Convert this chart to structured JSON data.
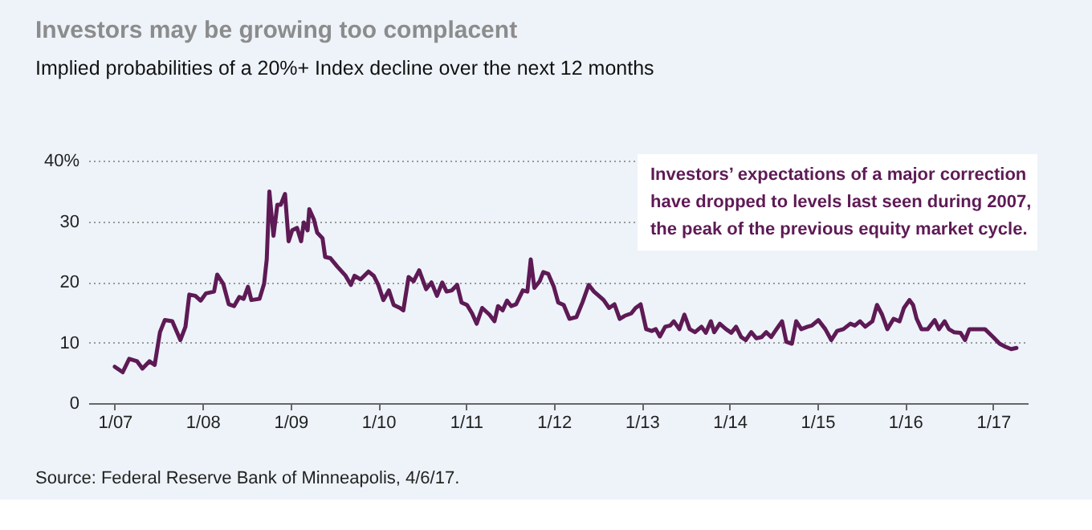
{
  "chart_data": {
    "type": "line",
    "title": "Investors may be growing too complacent",
    "subtitle": "Implied probabilities of a 20%+ Index decline over the next 12 months",
    "annotations": [
      "Investors’ expectations of a major correction have dropped to levels last seen during 2007, the peak of the previous equity market cycle.",
      "Source: Federal Reserve Bank of Minneapolis, 4/6/17."
    ],
    "xlim": [
      "2006-09-13",
      "2017-05-25"
    ],
    "xticks": [
      {
        "value": "2007-01-01",
        "label": "1/07"
      },
      {
        "value": "2008-01-01",
        "label": "1/08"
      },
      {
        "value": "2009-01-01",
        "label": "1/09"
      },
      {
        "value": "2010-01-01",
        "label": "1/10"
      },
      {
        "value": "2011-01-01",
        "label": "1/11"
      },
      {
        "value": "2012-01-01",
        "label": "1/12"
      },
      {
        "value": "2013-01-01",
        "label": "1/13"
      },
      {
        "value": "2014-01-01",
        "label": "1/14"
      },
      {
        "value": "2015-01-01",
        "label": "1/15"
      },
      {
        "value": "2016-01-01",
        "label": "1/16"
      },
      {
        "value": "2017-01-01",
        "label": "1/17"
      }
    ],
    "ylim": [
      0,
      40
    ],
    "yticks": [
      0,
      10,
      20,
      30,
      {
        "value": 40,
        "label": "40%"
      }
    ],
    "grid": "y",
    "legend": false,
    "line_style": "solid",
    "series": [
      {
        "color": "#5e1a55",
        "x": [
          "2007-01-01",
          "2007-02-03",
          "2007-03-02",
          "2007-04-04",
          "2007-04-26",
          "2007-05-25",
          "2007-06-16",
          "2007-07-08",
          "2007-07-28",
          "2007-08-28",
          "2007-10-01",
          "2007-10-22",
          "2007-11-07",
          "2007-12-02",
          "2007-12-24",
          "2008-01-15",
          "2008-02-18",
          "2008-03-02",
          "2008-03-27",
          "2008-04-19",
          "2008-05-11",
          "2008-06-02",
          "2008-06-20",
          "2008-07-08",
          "2008-07-22",
          "2008-08-25",
          "2008-09-13",
          "2008-09-24",
          "2008-10-05",
          "2008-10-22",
          "2008-11-07",
          "2008-11-21",
          "2008-12-09",
          "2008-12-24",
          "2009-01-08",
          "2009-01-28",
          "2009-02-14",
          "2009-02-25",
          "2009-03-13",
          "2009-03-20",
          "2009-04-08",
          "2009-04-22",
          "2009-05-14",
          "2009-05-25",
          "2009-06-16",
          "2009-07-15",
          "2009-08-18",
          "2009-09-09",
          "2009-09-24",
          "2009-10-19",
          "2009-11-21",
          "2009-12-13",
          "2010-01-01",
          "2010-01-22",
          "2010-02-14",
          "2010-03-06",
          "2010-04-01",
          "2010-04-15",
          "2010-05-07",
          "2010-05-28",
          "2010-06-20",
          "2010-07-19",
          "2010-08-10",
          "2010-09-02",
          "2010-09-24",
          "2010-10-12",
          "2010-11-03",
          "2010-11-25",
          "2010-12-13",
          "2011-01-05",
          "2011-01-26",
          "2011-02-14",
          "2011-03-09",
          "2011-04-08",
          "2011-04-29",
          "2011-05-14",
          "2011-06-02",
          "2011-06-20",
          "2011-07-08",
          "2011-07-28",
          "2011-08-25",
          "2011-09-13",
          "2011-09-27",
          "2011-10-12",
          "2011-11-03",
          "2011-11-18",
          "2011-12-09",
          "2012-01-01",
          "2012-01-19",
          "2012-02-11",
          "2012-03-06",
          "2012-04-04",
          "2012-04-29",
          "2012-05-25",
          "2012-06-16",
          "2012-07-12",
          "2012-07-26",
          "2012-08-18",
          "2012-09-09",
          "2012-10-01",
          "2012-10-22",
          "2012-11-18",
          "2012-12-06",
          "2012-12-27",
          "2013-01-19",
          "2013-02-11",
          "2013-02-28",
          "2013-03-17",
          "2013-04-08",
          "2013-04-29",
          "2013-05-14",
          "2013-06-06",
          "2013-06-27",
          "2013-07-19",
          "2013-08-10",
          "2013-09-06",
          "2013-09-24",
          "2013-10-15",
          "2013-10-29",
          "2013-11-21",
          "2013-12-17",
          "2014-01-08",
          "2014-01-28",
          "2014-02-18",
          "2014-03-09",
          "2014-04-01",
          "2014-04-22",
          "2014-05-14",
          "2014-06-02",
          "2014-06-23",
          "2014-07-15",
          "2014-08-07",
          "2014-08-25",
          "2014-09-17",
          "2014-10-05",
          "2014-10-26",
          "2014-11-21",
          "2014-12-09",
          "2015-01-05",
          "2015-02-03",
          "2015-02-28",
          "2015-03-24",
          "2015-04-19",
          "2015-05-18",
          "2015-06-06",
          "2015-06-27",
          "2015-07-19",
          "2015-08-18",
          "2015-09-06",
          "2015-09-27",
          "2015-10-19",
          "2015-11-14",
          "2015-12-09",
          "2015-12-27",
          "2016-01-19",
          "2016-02-03",
          "2016-02-18",
          "2016-03-09",
          "2016-04-04",
          "2016-05-03",
          "2016-05-21",
          "2016-06-13",
          "2016-07-01",
          "2016-07-22",
          "2016-08-18",
          "2016-09-06",
          "2016-09-24",
          "2016-10-26",
          "2016-11-28",
          "2017-01-01",
          "2017-01-28",
          "2017-02-21",
          "2017-03-17",
          "2017-04-08"
        ],
        "values": [
          6.0,
          5.1,
          7.3,
          6.9,
          5.7,
          6.9,
          6.3,
          11.7,
          13.7,
          13.5,
          10.4,
          12.6,
          17.9,
          17.7,
          16.9,
          18.1,
          18.4,
          21.2,
          19.7,
          16.3,
          16.0,
          17.5,
          17.2,
          19.2,
          17.0,
          17.2,
          19.7,
          23.7,
          34.9,
          27.6,
          32.7,
          32.7,
          34.5,
          26.7,
          28.5,
          28.9,
          26.7,
          29.8,
          28.5,
          32.0,
          30.3,
          28.1,
          27.2,
          24.1,
          23.9,
          22.5,
          21.0,
          19.5,
          21.0,
          20.4,
          21.7,
          21.0,
          19.5,
          17.0,
          18.6,
          16.2,
          15.7,
          15.3,
          20.8,
          20.1,
          21.9,
          18.8,
          19.9,
          17.7,
          19.9,
          18.4,
          18.6,
          19.5,
          16.6,
          16.2,
          14.8,
          13.1,
          15.7,
          14.6,
          13.5,
          16.0,
          15.3,
          16.9,
          16.0,
          16.3,
          18.6,
          18.4,
          23.7,
          19.0,
          20.1,
          21.6,
          21.3,
          19.2,
          16.6,
          16.2,
          13.9,
          14.2,
          16.6,
          19.5,
          18.4,
          17.5,
          17.0,
          15.7,
          16.3,
          13.9,
          14.4,
          14.8,
          15.7,
          16.3,
          12.2,
          11.9,
          12.2,
          11.0,
          12.6,
          12.8,
          13.5,
          12.2,
          14.6,
          12.2,
          11.7,
          12.6,
          11.6,
          13.5,
          11.7,
          13.1,
          12.2,
          11.6,
          12.6,
          10.9,
          10.4,
          11.7,
          10.7,
          10.9,
          11.7,
          10.9,
          12.2,
          13.5,
          10.1,
          9.8,
          13.5,
          12.2,
          12.6,
          12.8,
          13.7,
          12.2,
          10.4,
          11.9,
          12.2,
          13.1,
          12.8,
          13.5,
          12.6,
          13.5,
          16.2,
          14.6,
          12.2,
          13.9,
          13.5,
          15.7,
          17.0,
          16.2,
          13.9,
          12.2,
          12.2,
          13.7,
          12.2,
          13.5,
          12.2,
          11.7,
          11.6,
          10.4,
          12.2,
          12.2,
          12.2,
          10.9,
          9.8,
          9.3,
          8.9,
          9.1
        ]
      }
    ]
  }
}
